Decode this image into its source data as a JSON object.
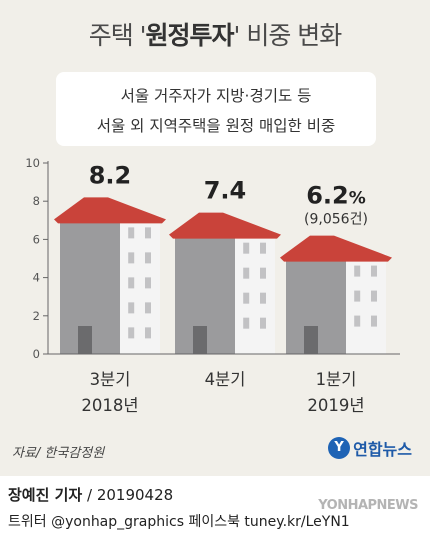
{
  "title": {
    "pre": "주택 '",
    "highlight": "원정투자",
    "post": "' 비중 변화"
  },
  "subtitle_lines": [
    "서울 거주자가 지방·경기도 등",
    "서울 외 지역주택을 원정 매입한 비중"
  ],
  "chart_data": {
    "type": "bar",
    "categories": [
      "3분기 2018년",
      "4분기",
      "1분기 2019년"
    ],
    "category_lines": [
      [
        "3분기",
        "2018년"
      ],
      [
        "4분기",
        ""
      ],
      [
        "1분기",
        "2019년"
      ]
    ],
    "values": [
      8.2,
      7.4,
      6.2
    ],
    "value_labels": [
      "8.2",
      "7.4",
      "6.2"
    ],
    "unit_suffix": [
      "",
      "",
      "%"
    ],
    "annotation": "(9,056건)",
    "ylim": [
      0,
      10
    ],
    "yticks": [
      "0",
      "2",
      "4",
      "6",
      "8",
      "10"
    ],
    "style": "building-shaped bars with red roofs",
    "colors": {
      "roof": "#c9433a",
      "front": "#9b9b9d",
      "side": "#f4f4f4",
      "window": "#c2c2c4",
      "door": "#6b6b6d",
      "axis": "#666666"
    }
  },
  "source": "자료/ 한국감정원",
  "logo_text": "연합뉴스",
  "credit": {
    "name": "장예진 기자",
    "date": " / 20190428"
  },
  "footer": "트위터 @yonhap_graphics  페이스북 tuney.kr/LeYN1",
  "watermark": "YONHAPNEWS"
}
